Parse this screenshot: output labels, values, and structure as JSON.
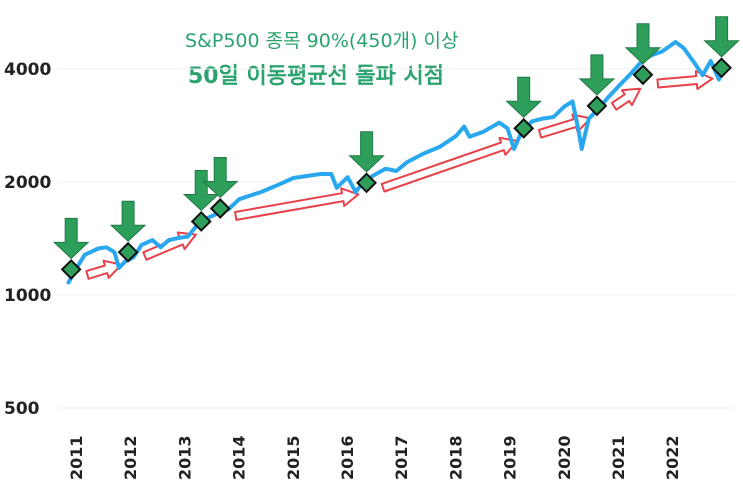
{
  "chart_data": {
    "type": "line",
    "title": "S&P500 종목 90%(450개) 이상",
    "subtitle": "50일 이동평균선 돌파 시점",
    "y_scale": "log",
    "ylim": [
      450,
      5000
    ],
    "yticks": [
      500,
      1000,
      2000,
      4000
    ],
    "ytick_labels": [
      "500",
      "1000",
      "2000",
      "4000"
    ],
    "xlim": [
      2010.6,
      2022.9
    ],
    "xticks": [
      2011,
      2012,
      2013,
      2014,
      2015,
      2016,
      2017,
      2018,
      2019,
      2020,
      2021,
      2022
    ],
    "xtick_labels": [
      "2011",
      "2012",
      "2013",
      "2014",
      "2015",
      "2016",
      "2017",
      "2018",
      "2019",
      "2020",
      "2021",
      "2022"
    ],
    "series": [
      {
        "color": "#29a8f0",
        "x": [
          2010.75,
          2010.9,
          2011.05,
          2011.3,
          2011.45,
          2011.6,
          2011.68,
          2011.8,
          2011.95,
          2012.1,
          2012.3,
          2012.45,
          2012.6,
          2012.8,
          2012.95,
          2013.1,
          2013.3,
          2013.5,
          2013.7,
          2013.9,
          2014.1,
          2014.3,
          2014.6,
          2014.9,
          2015.1,
          2015.4,
          2015.6,
          2015.7,
          2015.9,
          2016.05,
          2016.2,
          2016.4,
          2016.6,
          2016.8,
          2017.0,
          2017.3,
          2017.6,
          2017.9,
          2018.05,
          2018.15,
          2018.4,
          2018.7,
          2018.85,
          2018.97,
          2019.1,
          2019.3,
          2019.5,
          2019.7,
          2019.9,
          2020.05,
          2020.15,
          2020.22,
          2020.35,
          2020.5,
          2020.7,
          2020.9,
          2021.1,
          2021.3,
          2021.5,
          2021.7,
          2021.95,
          2022.1,
          2022.3,
          2022.45,
          2022.6,
          2022.75,
          2022.85
        ],
        "y": [
          1080,
          1180,
          1280,
          1330,
          1340,
          1300,
          1180,
          1230,
          1260,
          1360,
          1400,
          1340,
          1400,
          1420,
          1430,
          1520,
          1600,
          1650,
          1690,
          1800,
          1840,
          1880,
          1960,
          2050,
          2070,
          2100,
          2100,
          1930,
          2060,
          1880,
          2010,
          2090,
          2170,
          2140,
          2260,
          2380,
          2480,
          2650,
          2810,
          2640,
          2720,
          2880,
          2780,
          2450,
          2700,
          2900,
          2950,
          2980,
          3180,
          3280,
          2800,
          2450,
          2950,
          3100,
          3350,
          3600,
          3850,
          4150,
          4350,
          4450,
          4720,
          4550,
          4150,
          3850,
          4200,
          3750,
          4050
        ]
      }
    ],
    "markers_x": [
      2010.8,
      2011.85,
      2013.2,
      2013.55,
      2016.25,
      2019.15,
      2020.5,
      2021.35,
      2022.8
    ],
    "markers_y": [
      1170,
      1300,
      1570,
      1700,
      1990,
      2780,
      3190,
      3860,
      4030
    ],
    "marker_color": "#2e9e5b",
    "arrow_color": "#2e9e5b",
    "trend_arrow_color": "#e8414a"
  }
}
